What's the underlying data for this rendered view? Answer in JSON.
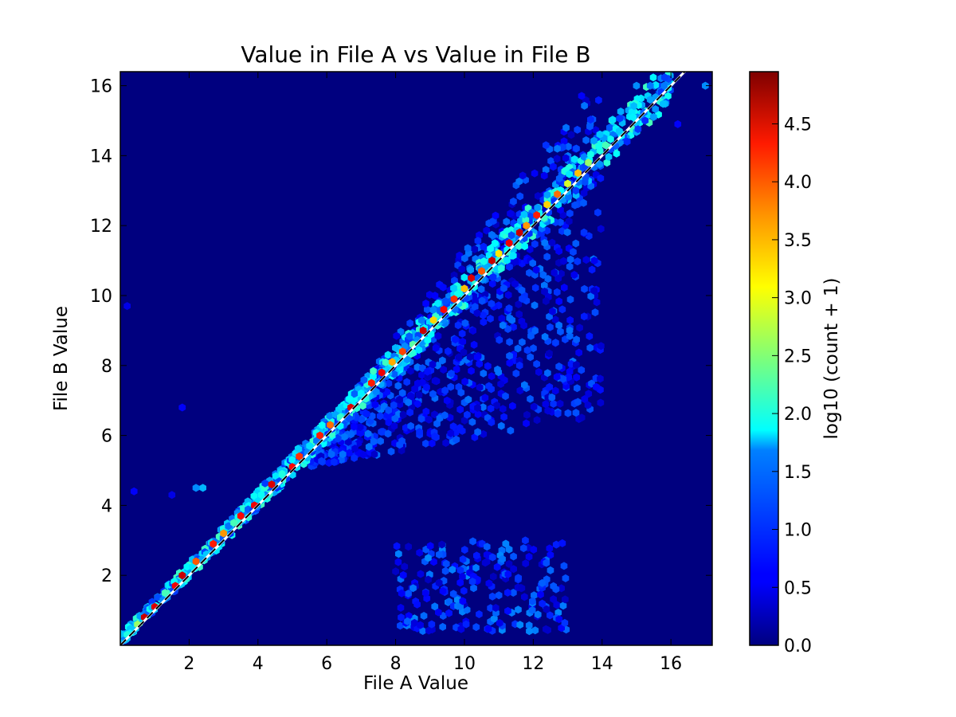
{
  "chart_data": {
    "type": "heatmap",
    "subtype": "hexbin",
    "title": "Value in File A vs Value in File B",
    "xlabel": "File A Value",
    "ylabel": "File B Value",
    "xlim": [
      0,
      17.2
    ],
    "ylim": [
      0,
      16.4
    ],
    "xticks": [
      "2",
      "4",
      "6",
      "8",
      "10",
      "12",
      "14",
      "16"
    ],
    "yticks": [
      "2",
      "4",
      "6",
      "8",
      "10",
      "12",
      "14",
      "16"
    ],
    "colormap": "jet",
    "background_color": "#00007f",
    "reference_line": {
      "style": "dashed",
      "colors": [
        "#000000",
        "#ffffff"
      ],
      "slope": 1,
      "intercept": 0
    },
    "colorbar": {
      "label": "log10 (count + 1)",
      "range": [
        0,
        4.95
      ],
      "ticks": [
        "0.0",
        "0.5",
        "1.0",
        "1.5",
        "2.0",
        "2.5",
        "3.0",
        "3.5",
        "4.0",
        "4.5"
      ]
    },
    "diagonal_band": [
      {
        "x": 0.2,
        "y": 0.3,
        "v": 2.0
      },
      {
        "x": 0.5,
        "y": 0.6,
        "v": 2.6
      },
      {
        "x": 0.7,
        "y": 0.8,
        "v": 4.6
      },
      {
        "x": 1.0,
        "y": 1.1,
        "v": 4.5
      },
      {
        "x": 1.3,
        "y": 1.5,
        "v": 2.2
      },
      {
        "x": 1.6,
        "y": 1.7,
        "v": 4.4
      },
      {
        "x": 1.8,
        "y": 2.0,
        "v": 4.6
      },
      {
        "x": 2.2,
        "y": 2.4,
        "v": 3.9
      },
      {
        "x": 2.5,
        "y": 2.6,
        "v": 1.6
      },
      {
        "x": 2.7,
        "y": 2.9,
        "v": 4.2
      },
      {
        "x": 3.0,
        "y": 3.2,
        "v": 3.6
      },
      {
        "x": 3.3,
        "y": 3.5,
        "v": 2.2
      },
      {
        "x": 3.5,
        "y": 3.7,
        "v": 4.3
      },
      {
        "x": 3.9,
        "y": 4.0,
        "v": 4.4
      },
      {
        "x": 4.1,
        "y": 4.3,
        "v": 1.9
      },
      {
        "x": 4.4,
        "y": 4.6,
        "v": 4.5
      },
      {
        "x": 4.7,
        "y": 4.9,
        "v": 2.0
      },
      {
        "x": 5.0,
        "y": 5.1,
        "v": 4.3
      },
      {
        "x": 5.2,
        "y": 5.4,
        "v": 4.1
      },
      {
        "x": 5.5,
        "y": 5.7,
        "v": 1.7
      },
      {
        "x": 5.8,
        "y": 6.0,
        "v": 4.2
      },
      {
        "x": 6.1,
        "y": 6.3,
        "v": 3.8
      },
      {
        "x": 6.4,
        "y": 6.5,
        "v": 2.1
      },
      {
        "x": 6.7,
        "y": 6.8,
        "v": 4.5
      },
      {
        "x": 7.0,
        "y": 7.2,
        "v": 1.8
      },
      {
        "x": 7.3,
        "y": 7.5,
        "v": 4.2
      },
      {
        "x": 7.6,
        "y": 7.8,
        "v": 4.4
      },
      {
        "x": 7.9,
        "y": 8.1,
        "v": 3.5
      },
      {
        "x": 8.2,
        "y": 8.4,
        "v": 4.0
      },
      {
        "x": 8.5,
        "y": 8.6,
        "v": 2.3
      },
      {
        "x": 8.8,
        "y": 9.0,
        "v": 4.6
      },
      {
        "x": 9.1,
        "y": 9.3,
        "v": 3.3
      },
      {
        "x": 9.4,
        "y": 9.6,
        "v": 4.3
      },
      {
        "x": 9.7,
        "y": 9.9,
        "v": 4.1
      },
      {
        "x": 10.0,
        "y": 10.2,
        "v": 3.4
      },
      {
        "x": 10.2,
        "y": 10.5,
        "v": 4.5
      },
      {
        "x": 10.5,
        "y": 10.7,
        "v": 3.9
      },
      {
        "x": 10.8,
        "y": 11.0,
        "v": 4.6
      },
      {
        "x": 11.0,
        "y": 11.2,
        "v": 3.2
      },
      {
        "x": 11.3,
        "y": 11.5,
        "v": 4.4
      },
      {
        "x": 11.6,
        "y": 11.8,
        "v": 4.6
      },
      {
        "x": 11.8,
        "y": 12.0,
        "v": 3.6
      },
      {
        "x": 12.1,
        "y": 12.3,
        "v": 4.2
      },
      {
        "x": 12.4,
        "y": 12.6,
        "v": 3.3
      },
      {
        "x": 12.7,
        "y": 12.9,
        "v": 3.8
      },
      {
        "x": 13.0,
        "y": 13.2,
        "v": 2.9
      },
      {
        "x": 13.3,
        "y": 13.5,
        "v": 3.4
      },
      {
        "x": 13.6,
        "y": 13.8,
        "v": 2.6
      },
      {
        "x": 14.1,
        "y": 14.3,
        "v": 2.2
      },
      {
        "x": 14.5,
        "y": 14.7,
        "v": 1.6
      },
      {
        "x": 14.9,
        "y": 15.1,
        "v": 1.8
      },
      {
        "x": 15.4,
        "y": 15.6,
        "v": 1.4
      },
      {
        "x": 15.8,
        "y": 16.0,
        "v": 1.2
      }
    ]
  }
}
